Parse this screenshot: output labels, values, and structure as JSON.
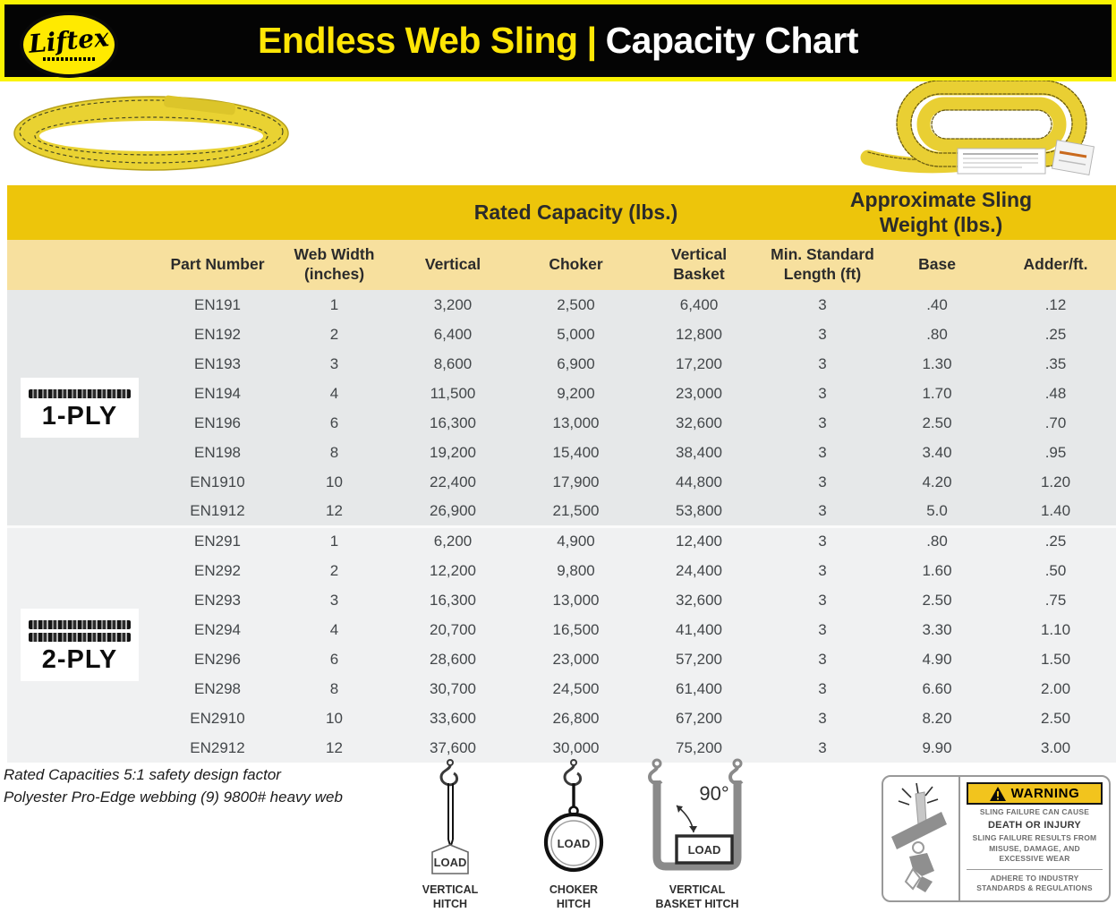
{
  "header": {
    "brand": "Liftex",
    "title_primary": "Endless Web Sling",
    "separator": "|",
    "title_secondary": "Capacity Chart"
  },
  "table": {
    "group_headers": {
      "rated_capacity": "Rated Capacity (lbs.)",
      "sling_weight": "Approximate Sling Weight (lbs.)"
    },
    "columns": {
      "part_number": "Part Number",
      "web_width": "Web Width (inches)",
      "vertical": "Vertical",
      "choker": "Choker",
      "vertical_basket": "Vertical Basket",
      "min_standard_length": "Min. Standard Length (ft)",
      "base": "Base",
      "adder": "Adder/ft."
    },
    "sections": [
      {
        "ply_label": "1-PLY",
        "strips": 1,
        "rows": [
          [
            "EN191",
            "1",
            "3,200",
            "2,500",
            "6,400",
            "3",
            ".40",
            ".12"
          ],
          [
            "EN192",
            "2",
            "6,400",
            "5,000",
            "12,800",
            "3",
            ".80",
            ".25"
          ],
          [
            "EN193",
            "3",
            "8,600",
            "6,900",
            "17,200",
            "3",
            "1.30",
            ".35"
          ],
          [
            "EN194",
            "4",
            "11,500",
            "9,200",
            "23,000",
            "3",
            "1.70",
            ".48"
          ],
          [
            "EN196",
            "6",
            "16,300",
            "13,000",
            "32,600",
            "3",
            "2.50",
            ".70"
          ],
          [
            "EN198",
            "8",
            "19,200",
            "15,400",
            "38,400",
            "3",
            "3.40",
            ".95"
          ],
          [
            "EN1910",
            "10",
            "22,400",
            "17,900",
            "44,800",
            "3",
            "4.20",
            "1.20"
          ],
          [
            "EN1912",
            "12",
            "26,900",
            "21,500",
            "53,800",
            "3",
            "5.0",
            "1.40"
          ]
        ]
      },
      {
        "ply_label": "2-PLY",
        "strips": 2,
        "rows": [
          [
            "EN291",
            "1",
            "6,200",
            "4,900",
            "12,400",
            "3",
            ".80",
            ".25"
          ],
          [
            "EN292",
            "2",
            "12,200",
            "9,800",
            "24,400",
            "3",
            "1.60",
            ".50"
          ],
          [
            "EN293",
            "3",
            "16,300",
            "13,000",
            "32,600",
            "3",
            "2.50",
            ".75"
          ],
          [
            "EN294",
            "4",
            "20,700",
            "16,500",
            "41,400",
            "3",
            "3.30",
            "1.10"
          ],
          [
            "EN296",
            "6",
            "28,600",
            "23,000",
            "57,200",
            "3",
            "4.90",
            "1.50"
          ],
          [
            "EN298",
            "8",
            "30,700",
            "24,500",
            "61,400",
            "3",
            "6.60",
            "2.00"
          ],
          [
            "EN2910",
            "10",
            "33,600",
            "26,800",
            "67,200",
            "3",
            "8.20",
            "2.50"
          ],
          [
            "EN2912",
            "12",
            "37,600",
            "30,000",
            "75,200",
            "3",
            "9.90",
            "3.00"
          ]
        ]
      }
    ]
  },
  "footnotes": {
    "line1": "Rated Capacities 5:1 safety design factor",
    "line2": "Polyester Pro-Edge webbing (9) 9800# heavy web"
  },
  "hitches": [
    {
      "label": "VERTICAL HITCH",
      "load": "LOAD"
    },
    {
      "label": "CHOKER HITCH",
      "load": "LOAD"
    },
    {
      "label": "VERTICAL BASKET HITCH",
      "load": "LOAD",
      "angle": "90°"
    }
  ],
  "warning": {
    "title": "WARNING",
    "cause": "SLING FAILURE CAN CAUSE",
    "consequence": "DEATH OR INJURY",
    "detail": "SLING FAILURE RESULTS FROM MISUSE, DAMAGE, AND EXCESSIVE WEAR",
    "adhere": "ADHERE TO INDUSTRY STANDARDS & REGULATIONS"
  },
  "colors": {
    "banner_bg": "#040404",
    "banner_border_yellow": "#FAF303",
    "title_yellow": "#FFE605",
    "title_white": "#FFFFFF",
    "band_gold": "#EDC50B",
    "band_light_yellow": "#F7E09E",
    "row_gray_1ply": "#E6E8E9",
    "row_gray_2ply": "#F0F1F2",
    "warning_banner_yellow": "#F2C41D",
    "sling_yellow": "#E9CF33"
  }
}
